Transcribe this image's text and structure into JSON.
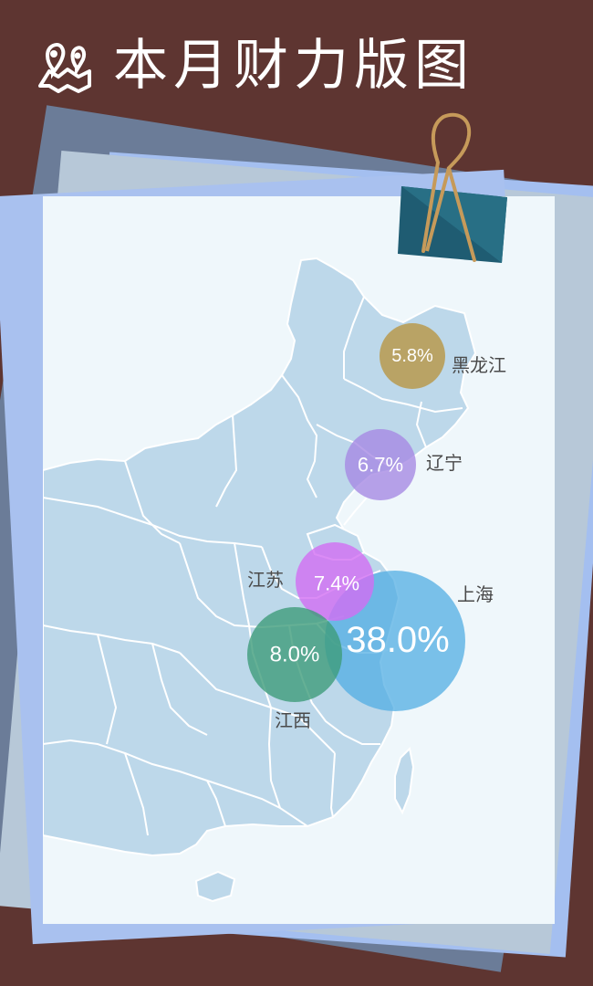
{
  "header": {
    "title": "本月财力版图",
    "icon": "map-pin-icon"
  },
  "colors": {
    "background": "#5e3531",
    "map_land": "#bdd8ea",
    "map_border": "#ffffff",
    "card": "#eff7fb"
  },
  "bubbles": [
    {
      "province": "黑龙江",
      "value_label": "5.8%",
      "value": 5.8,
      "color": "#b99a4d"
    },
    {
      "province": "辽宁",
      "value_label": "6.7%",
      "value": 6.7,
      "color": "#a68ae3"
    },
    {
      "province": "江苏",
      "value_label": "7.4%",
      "value": 7.4,
      "color": "#d26ef3"
    },
    {
      "province": "上海",
      "value_label": "38.0%",
      "value": 38.0,
      "color": "#52ade3"
    },
    {
      "province": "江西",
      "value_label": "8.0%",
      "value": 8.0,
      "color": "#3f9c7a"
    }
  ]
}
